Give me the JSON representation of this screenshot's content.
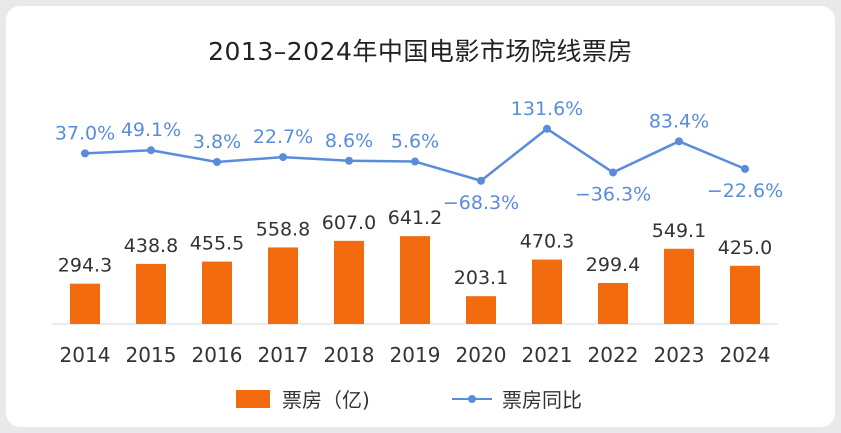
{
  "chart_data": {
    "type": "bar+line",
    "title": "2013–2024年中国电影市场院线票房",
    "categories": [
      "2014",
      "2015",
      "2016",
      "2017",
      "2018",
      "2019",
      "2020",
      "2021",
      "2022",
      "2023",
      "2024"
    ],
    "series": [
      {
        "name": "票房（亿)",
        "type": "bar",
        "color": "#f26b0f",
        "values": [
          294.3,
          438.8,
          455.5,
          558.8,
          607.0,
          641.2,
          203.1,
          470.3,
          299.4,
          549.1,
          425.0
        ],
        "labels": [
          "294.3",
          "438.8",
          "455.5",
          "558.8",
          "607.0",
          "641.2",
          "203.1",
          "470.3",
          "299.4",
          "549.1",
          "425.0"
        ]
      },
      {
        "name": "票房同比",
        "type": "line",
        "color": "#5b8cdc",
        "values": [
          37.0,
          49.1,
          3.8,
          22.7,
          8.6,
          5.6,
          -68.3,
          131.6,
          -36.3,
          83.4,
          -22.6
        ],
        "labels": [
          "37.0%",
          "49.1%",
          "3.8%",
          "22.7%",
          "8.6%",
          "5.6%",
          "−68.3%",
          "131.6%",
          "−36.3%",
          "83.4%",
          "−22.6%"
        ]
      }
    ],
    "grid": false,
    "legend": "bottom-center"
  }
}
